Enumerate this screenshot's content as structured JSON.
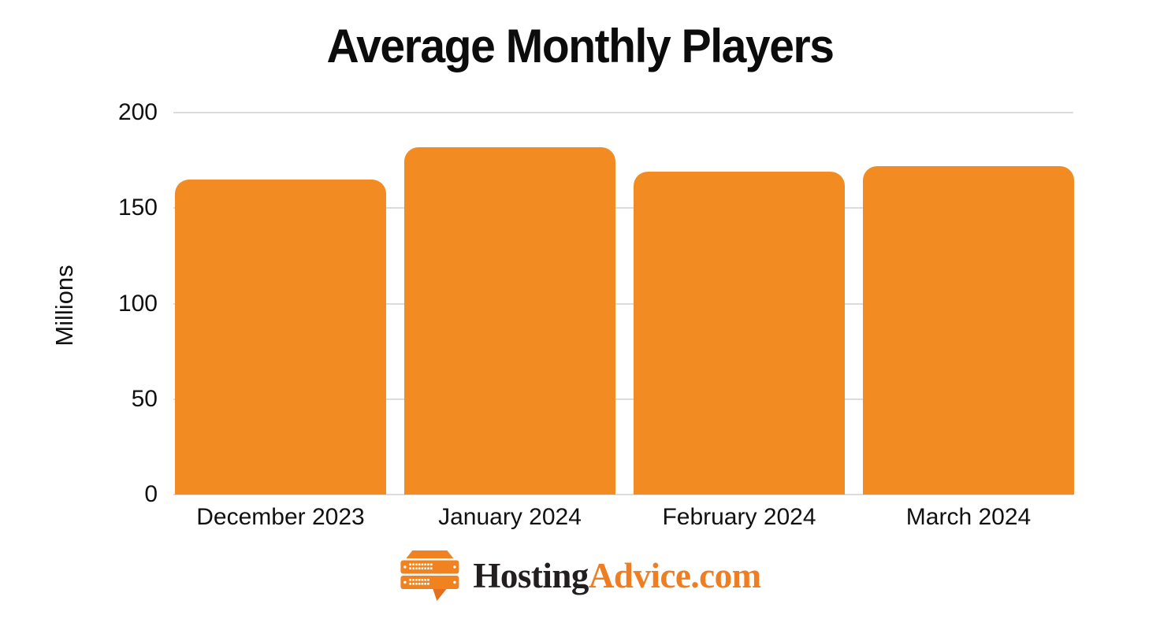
{
  "chart_data": {
    "type": "bar",
    "title": "Average Monthly Players",
    "categories": [
      "December 2023",
      "January 2024",
      "February 2024",
      "March 2024"
    ],
    "values": [
      165,
      182,
      169,
      172
    ],
    "xlabel": "",
    "ylabel": "Millions",
    "ylim": [
      0,
      200
    ],
    "yticks": [
      0,
      50,
      100,
      150,
      200
    ],
    "grid": true,
    "legend": "none",
    "bar_color": "#F28C22"
  },
  "colors": {
    "bar": "#F28C22",
    "gridline": "#DCDCDC",
    "text": "#111111",
    "title": "#0C0C0C",
    "background": "#FFFFFF",
    "logo_dark": "#231F20",
    "logo_orange": "#EF7D22",
    "logo_icon_orange": "#F0831F",
    "logo_icon_tail": "#E56F1E"
  },
  "branding": {
    "icon": "server-speech-bubble-icon",
    "logo_text_primary": "Hosting",
    "logo_text_secondary": "Advice.com"
  }
}
